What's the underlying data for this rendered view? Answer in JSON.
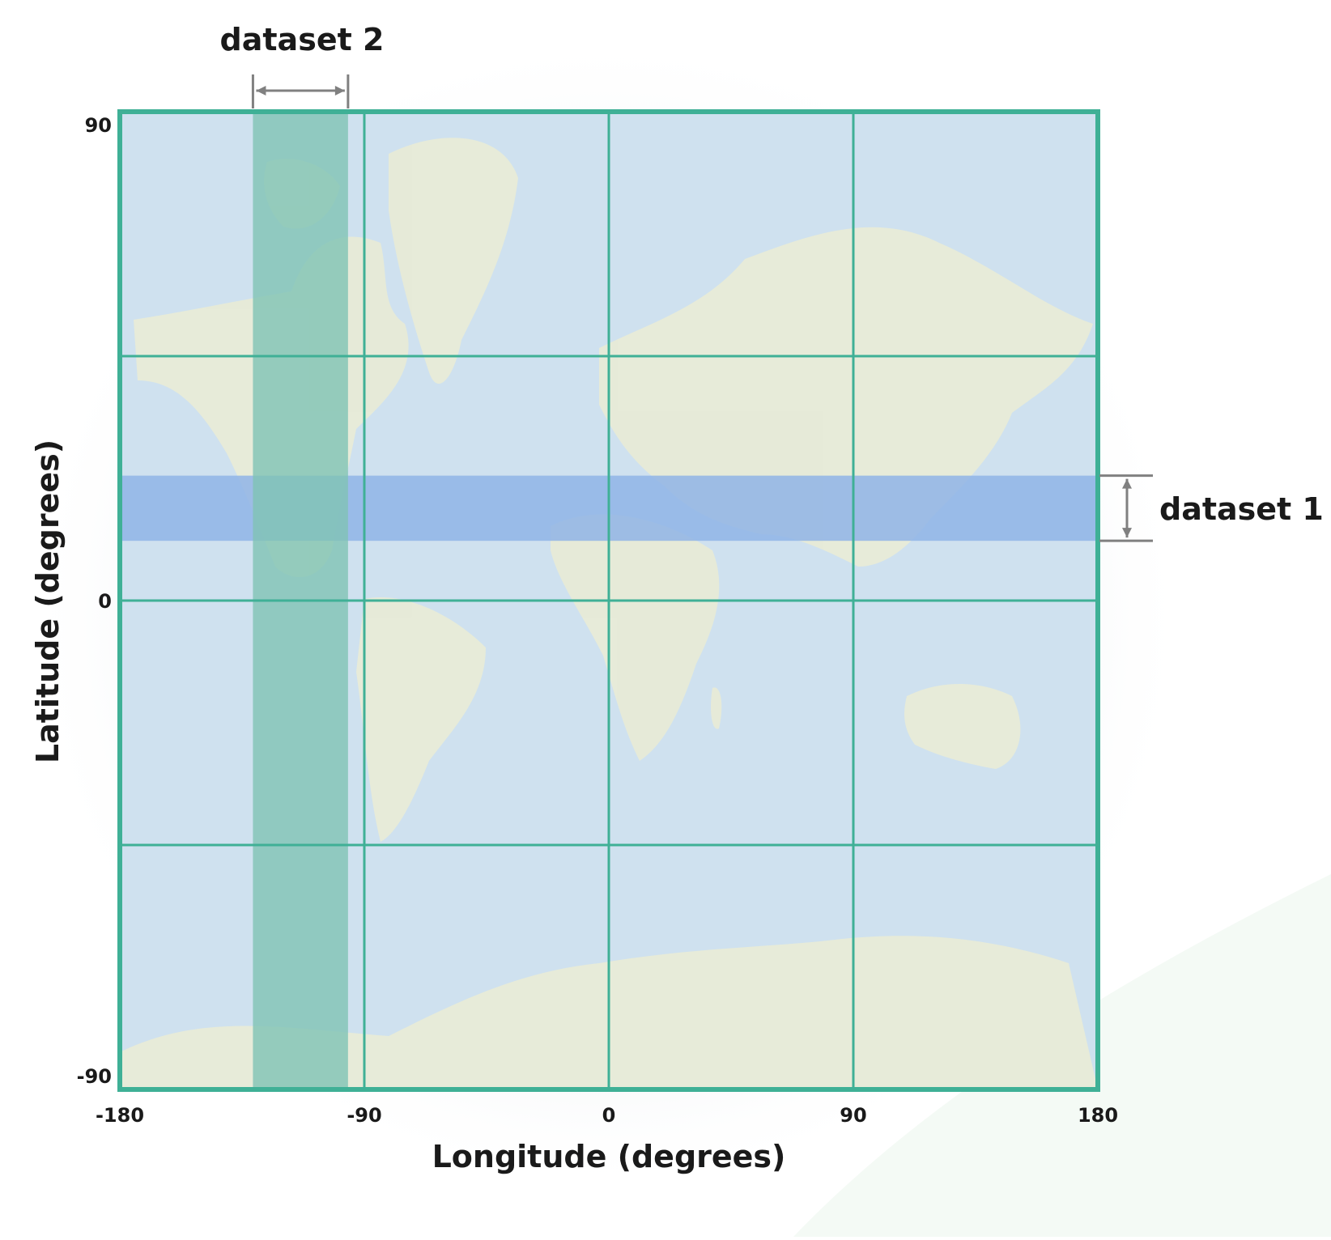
{
  "labels": {
    "dataset_1": "dataset 1",
    "dataset_2": "dataset 2",
    "x_axis": "Longitude (degrees)",
    "y_axis": "Latitude (degrees)"
  },
  "x_ticks": [
    "-180",
    "-90",
    "0",
    "90",
    "180"
  ],
  "y_ticks": [
    "90",
    "0",
    "-90"
  ],
  "colors": {
    "grid": "#3fb096",
    "ocean": "#cfe1ef",
    "land": "#e9ecd6",
    "dataset_1": "#8fb4e6",
    "dataset_2": "#7fc3b4",
    "bracket": "#808080"
  },
  "chart_data": {
    "type": "diagram",
    "xlabel": "Longitude (degrees)",
    "ylabel": "Latitude (degrees)",
    "xlim": [
      -180,
      180
    ],
    "ylim": [
      -90,
      90
    ],
    "grid_lines_x": [
      -90,
      0,
      90
    ],
    "grid_lines_y": [
      -45,
      0,
      45
    ],
    "regions": [
      {
        "name": "dataset 1",
        "lon_range": [
          -180,
          180
        ],
        "lat_range": [
          11,
          23
        ]
      },
      {
        "name": "dataset 2",
        "lon_range": [
          -131,
          -96
        ],
        "lat_range": [
          -90,
          90
        ]
      }
    ]
  }
}
